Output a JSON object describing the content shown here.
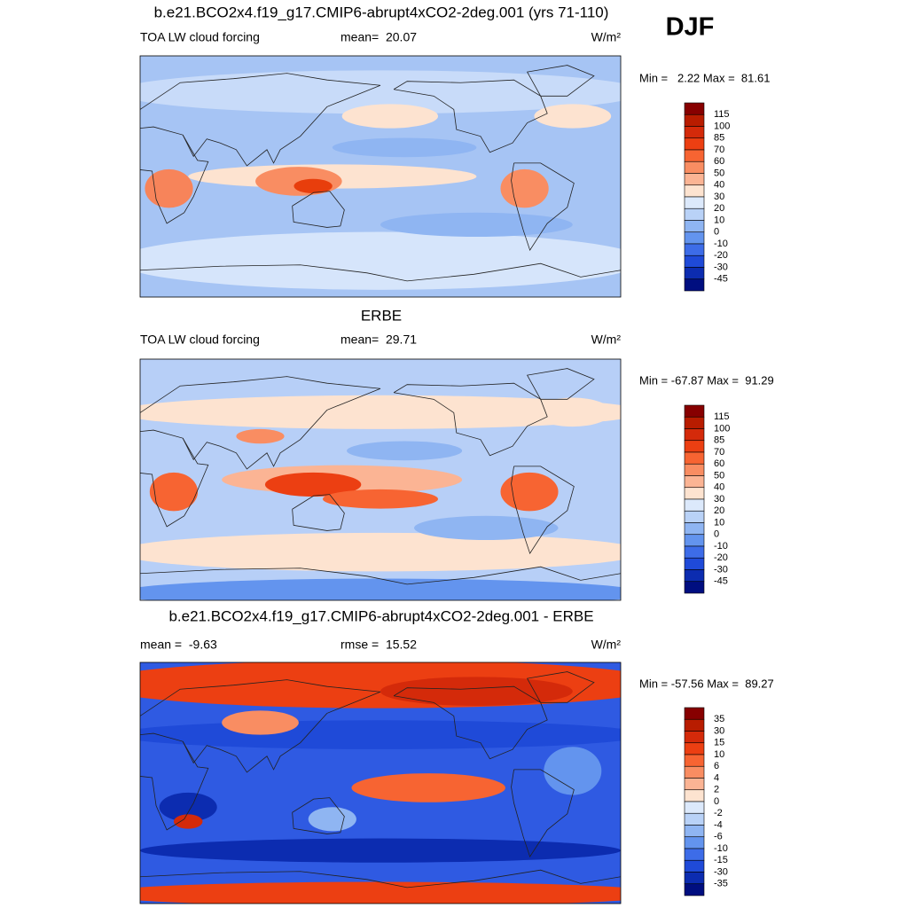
{
  "header": {
    "season": "DJF"
  },
  "panels": [
    {
      "title": "b.e21.BCO2x4.f19_g17.CMIP6-abrupt4xCO2-2deg.001 (yrs 71-110)",
      "left": "TOA LW cloud forcing",
      "center": "mean=  20.07",
      "units": "W/m²",
      "range": "Min =   2.22 Max =  81.61",
      "colorbar": {
        "labels": [
          "115",
          "100",
          "85",
          "70",
          "60",
          "50",
          "40",
          "30",
          "20",
          "10",
          "0",
          "-10",
          "-20",
          "-30",
          "-45"
        ],
        "colors": [
          "#870000",
          "#b81c00",
          "#d42a0a",
          "#ec3f12",
          "#f76432",
          "#f98d62",
          "#fbb494",
          "#fde3d0",
          "#dce9fb",
          "#b9d2f7",
          "#8fb5f2",
          "#6394ee",
          "#3d6ce8",
          "#1f4ad8",
          "#0c2cb0",
          "#000e80"
        ]
      }
    },
    {
      "title": "ERBE",
      "left": "TOA LW cloud forcing",
      "center": "mean=  29.71",
      "units": "W/m²",
      "range": "Min = -67.87 Max =  91.29",
      "colorbar": {
        "labels": [
          "115",
          "100",
          "85",
          "70",
          "60",
          "50",
          "40",
          "30",
          "20",
          "10",
          "0",
          "-10",
          "-20",
          "-30",
          "-45"
        ],
        "colors": [
          "#870000",
          "#b81c00",
          "#d42a0a",
          "#ec3f12",
          "#f76432",
          "#f98d62",
          "#fbb494",
          "#fde3d0",
          "#dce9fb",
          "#b9d2f7",
          "#8fb5f2",
          "#6394ee",
          "#3d6ce8",
          "#1f4ad8",
          "#0c2cb0",
          "#000e80"
        ]
      }
    },
    {
      "title": "b.e21.BCO2x4.f19_g17.CMIP6-abrupt4xCO2-2deg.001 - ERBE",
      "left": "mean =  -9.63",
      "center": "rmse =  15.52",
      "units": "W/m²",
      "range": "Min = -57.56 Max =  89.27",
      "colorbar": {
        "labels": [
          "35",
          "30",
          "15",
          "10",
          "6",
          "4",
          "2",
          "0",
          "-2",
          "-4",
          "-6",
          "-10",
          "-15",
          "-30",
          "-35"
        ],
        "colors": [
          "#870000",
          "#b81c00",
          "#d42a0a",
          "#ec3f12",
          "#f76432",
          "#f98d62",
          "#fbb494",
          "#fde3d0",
          "#dce9fb",
          "#b9d2f7",
          "#8fb5f2",
          "#6394ee",
          "#3d6ce8",
          "#1f4ad8",
          "#0c2cb0",
          "#000e80"
        ]
      }
    }
  ]
}
